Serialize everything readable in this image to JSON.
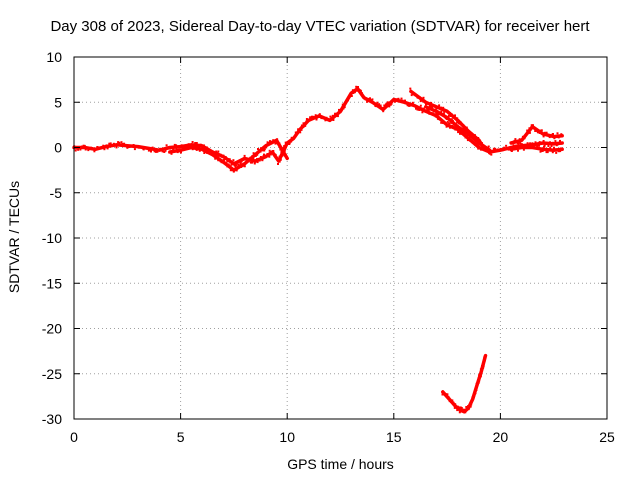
{
  "chart_data": {
    "type": "scatter",
    "title": "Day 308 of 2023, Sidereal Day-to-day VTEC variation (SDTVAR) for receiver hert",
    "xlabel": "GPS time / hours",
    "ylabel": "SDTVAR / TECUs",
    "xlim": [
      0,
      25
    ],
    "ylim": [
      -30,
      10
    ],
    "xticks": [
      "0",
      "5",
      "10",
      "15",
      "20",
      "25"
    ],
    "yticks": [
      "10",
      "5",
      "0",
      "-5",
      "-10",
      "-15",
      "-20",
      "-25",
      "-30"
    ],
    "grid": true,
    "series_color": "#ff0000",
    "series": [
      {
        "name": "main",
        "x": [
          0.0,
          0.5,
          1.0,
          1.5,
          2.0,
          2.5,
          3.0,
          3.5,
          4.0,
          4.5,
          5.0,
          5.5,
          6.0,
          6.5,
          7.0,
          7.5,
          8.0,
          8.5,
          9.0,
          9.3,
          9.6,
          9.8,
          10.0,
          10.3,
          10.6,
          11.0,
          11.5,
          12.0,
          12.5,
          13.0,
          13.3,
          13.6,
          14.0,
          14.5,
          15.0,
          15.5,
          16.0,
          16.5,
          17.0,
          17.5,
          18.0,
          18.5,
          19.0,
          19.5,
          20.0,
          20.5,
          21.0,
          21.5,
          22.0,
          22.5,
          22.9
        ],
        "y": [
          0.0,
          0.0,
          -0.2,
          0.1,
          0.3,
          0.2,
          0.1,
          -0.1,
          -0.3,
          0.0,
          0.1,
          0.3,
          0.2,
          -0.5,
          -1.0,
          -1.8,
          -1.2,
          -1.5,
          -1.0,
          -0.5,
          -1.5,
          -0.5,
          0.5,
          1.0,
          2.0,
          3.0,
          3.5,
          3.0,
          4.0,
          6.0,
          6.5,
          5.5,
          5.0,
          4.2,
          5.3,
          5.0,
          4.6,
          4.0,
          3.5,
          2.5,
          2.0,
          1.0,
          0.0,
          -0.5,
          -0.3,
          0.0,
          0.2,
          0.3,
          0.5,
          0.4,
          0.5
        ]
      },
      {
        "name": "band-lower",
        "x": [
          4.5,
          5.0,
          5.5,
          6.0,
          6.5,
          7.0,
          7.5,
          8.0,
          8.5,
          9.0,
          9.5,
          10.0
        ],
        "y": [
          -0.5,
          -0.3,
          0.0,
          -0.2,
          -0.8,
          -1.6,
          -2.5,
          -1.8,
          -0.8,
          0.2,
          0.8,
          -1.2
        ]
      },
      {
        "name": "branch-upper",
        "x": [
          15.8,
          16.5,
          17.0,
          17.5,
          18.0,
          18.5,
          19.0
        ],
        "y": [
          6.2,
          5.0,
          4.5,
          4.0,
          3.0,
          1.8,
          0.8
        ]
      },
      {
        "name": "branch-lower",
        "x": [
          16.5,
          17.0,
          17.5,
          18.0,
          18.5,
          19.0,
          19.5
        ],
        "y": [
          4.5,
          4.0,
          3.3,
          2.3,
          1.5,
          0.5,
          -0.3
        ]
      },
      {
        "name": "tail-upper",
        "x": [
          20.5,
          21.0,
          21.5,
          22.0,
          22.5,
          22.9
        ],
        "y": [
          0.5,
          0.8,
          2.3,
          1.5,
          1.2,
          1.3
        ]
      },
      {
        "name": "tail-lower",
        "x": [
          20.5,
          21.0,
          21.5,
          22.0,
          22.5,
          22.9
        ],
        "y": [
          -0.2,
          0.0,
          0.0,
          -0.2,
          -0.3,
          -0.2
        ]
      },
      {
        "name": "dip",
        "x": [
          17.3,
          17.6,
          17.9,
          18.1,
          18.3,
          18.5,
          18.7,
          18.9,
          19.1,
          19.3
        ],
        "y": [
          -27.0,
          -27.8,
          -28.6,
          -29.0,
          -29.2,
          -28.8,
          -27.8,
          -26.3,
          -24.8,
          -23.0
        ]
      }
    ]
  }
}
